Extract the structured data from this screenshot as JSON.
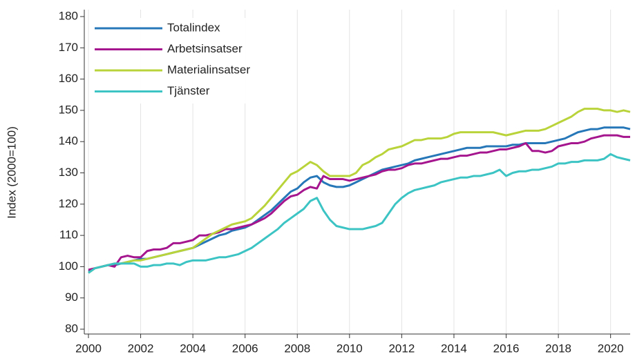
{
  "chart_data": {
    "type": "line",
    "y_label": "Index (2000=100)",
    "x": [
      2000,
      2000.25,
      2000.5,
      2000.75,
      2001,
      2001.25,
      2001.5,
      2001.75,
      2002,
      2002.25,
      2002.5,
      2002.75,
      2003,
      2003.25,
      2003.5,
      2003.75,
      2004,
      2004.25,
      2004.5,
      2004.75,
      2005,
      2005.25,
      2005.5,
      2005.75,
      2006,
      2006.25,
      2006.5,
      2006.75,
      2007,
      2007.25,
      2007.5,
      2007.75,
      2008,
      2008.25,
      2008.5,
      2008.75,
      2009,
      2009.25,
      2009.5,
      2009.75,
      2010,
      2010.25,
      2010.5,
      2010.75,
      2011,
      2011.25,
      2011.5,
      2011.75,
      2012,
      2012.25,
      2012.5,
      2012.75,
      2013,
      2013.25,
      2013.5,
      2013.75,
      2014,
      2014.25,
      2014.5,
      2014.75,
      2015,
      2015.25,
      2015.5,
      2015.75,
      2016,
      2016.25,
      2016.5,
      2016.75,
      2017,
      2017.25,
      2017.5,
      2017.75,
      2018,
      2018.25,
      2018.5,
      2018.75,
      2019,
      2019.25,
      2019.5,
      2019.75,
      2020,
      2020.25,
      2020.5,
      2020.75
    ],
    "series": [
      {
        "name": "Totalindex",
        "color": "#2677b8",
        "values": [
          98.5,
          99.5,
          100,
          100.5,
          100.5,
          101,
          101.5,
          102,
          102.5,
          102.5,
          103,
          103.5,
          104,
          104.5,
          105,
          105.5,
          106,
          107,
          108,
          109,
          110,
          110.5,
          111.5,
          112,
          112.5,
          113.5,
          115,
          116.5,
          118,
          120,
          122,
          124,
          125,
          127,
          128.5,
          129,
          127,
          126,
          125.5,
          125.5,
          126,
          127,
          128,
          129,
          130,
          131,
          131.5,
          132,
          132.5,
          133,
          134,
          134.5,
          135,
          135.5,
          136,
          136.5,
          137,
          137.5,
          138,
          138,
          138,
          138.5,
          138.5,
          138.5,
          138.5,
          139,
          139,
          139.5,
          139.5,
          139.5,
          139.5,
          140,
          140.5,
          141,
          142,
          143,
          143.5,
          144,
          144,
          144.5,
          144.5,
          144.5,
          144.5,
          144
        ]
      },
      {
        "name": "Arbetsinsatser",
        "color": "#a5168e",
        "values": [
          99,
          99.5,
          100,
          100.5,
          100,
          103,
          103.5,
          103,
          103,
          105,
          105.5,
          105.5,
          106,
          107.5,
          107.5,
          108,
          108.5,
          110,
          110,
          110.5,
          111,
          112,
          112,
          112.5,
          113,
          113.5,
          114.5,
          115.5,
          117,
          119,
          121,
          122.5,
          123,
          124.5,
          125.5,
          125,
          129,
          128,
          128,
          128,
          127.5,
          128,
          128.5,
          129,
          129.5,
          130.5,
          131,
          131,
          131.5,
          132.5,
          133,
          133,
          133.5,
          134,
          134.5,
          134.5,
          135,
          135.5,
          135.5,
          136,
          136.5,
          136.5,
          137,
          137.5,
          137.5,
          138,
          138.5,
          139.5,
          137,
          137,
          136.5,
          137,
          138.5,
          139,
          139.5,
          139.5,
          140,
          141,
          141.5,
          142,
          142,
          142,
          141.5,
          141.5
        ]
      },
      {
        "name": "Materialinsatser",
        "color": "#b9d43b",
        "values": [
          98,
          99.5,
          100,
          100.5,
          101,
          101,
          101.5,
          102,
          102,
          102.5,
          103,
          103.5,
          104,
          104.5,
          105,
          105.5,
          106,
          107.5,
          109,
          110.5,
          111.5,
          112.5,
          113.5,
          114,
          114.5,
          115.5,
          117.5,
          119.5,
          122,
          124.5,
          127,
          129.5,
          130.5,
          132,
          133.5,
          132.5,
          130.5,
          129,
          129,
          129,
          129,
          130,
          132.5,
          133.5,
          135,
          136,
          137.5,
          138,
          138.5,
          139.5,
          140.5,
          140.5,
          141,
          141,
          141,
          141.5,
          142.5,
          143,
          143,
          143,
          143,
          143,
          143,
          142.5,
          142,
          142.5,
          143,
          143.5,
          143.5,
          143.5,
          144,
          145,
          146,
          147,
          148,
          149.5,
          150.5,
          150.5,
          150.5,
          150,
          150,
          149.5,
          150,
          149.5
        ]
      },
      {
        "name": "Tjänster",
        "color": "#3cc3c3",
        "values": [
          98,
          99.5,
          100,
          100.5,
          101,
          101,
          101,
          101,
          100,
          100,
          100.5,
          100.5,
          101,
          101,
          100.5,
          101.5,
          102,
          102,
          102,
          102.5,
          103,
          103,
          103.5,
          104,
          105,
          106,
          107.5,
          109,
          110.5,
          112,
          114,
          115.5,
          117,
          118.5,
          121,
          122,
          118,
          115,
          113,
          112.5,
          112,
          112,
          112,
          112.5,
          113,
          114,
          117,
          120,
          122,
          123.5,
          124.5,
          125,
          125.5,
          126,
          127,
          127.5,
          128,
          128.5,
          128.5,
          129,
          129,
          129.5,
          130,
          131,
          129,
          130,
          130.5,
          130.5,
          131,
          131,
          131.5,
          132,
          133,
          133,
          133.5,
          133.5,
          134,
          134,
          134,
          134.5,
          136,
          135,
          134.5,
          134
        ]
      }
    ],
    "xlim": [
      2000,
      2020.75
    ],
    "xticks": [
      2000,
      2002,
      2004,
      2006,
      2008,
      2010,
      2012,
      2014,
      2016,
      2018,
      2020
    ],
    "ylim": [
      80,
      180
    ],
    "yticks": [
      80,
      90,
      100,
      110,
      120,
      130,
      140,
      150,
      160,
      170,
      180
    ],
    "grid": "x",
    "legend": "top-left"
  }
}
